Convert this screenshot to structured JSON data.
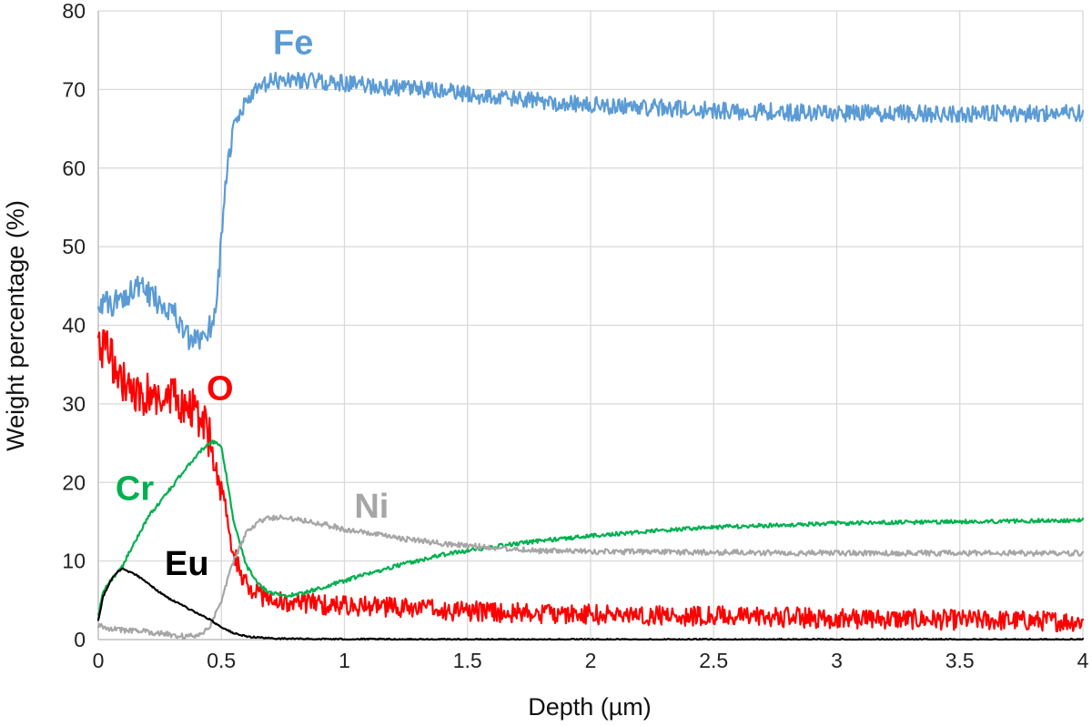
{
  "chart_data": {
    "type": "line",
    "title": "",
    "xlabel": "Depth (µm)",
    "ylabel": "Weight percentage (%)",
    "xlim": [
      0,
      4
    ],
    "ylim": [
      0,
      80
    ],
    "x_ticks": [
      0,
      0.5,
      1,
      1.5,
      2,
      2.5,
      3,
      3.5,
      4
    ],
    "y_ticks": [
      0,
      10,
      20,
      30,
      40,
      50,
      60,
      70,
      80
    ],
    "x_tick_labels": [
      "0",
      "0.5",
      "1",
      "1.5",
      "2",
      "2.5",
      "3",
      "3.5",
      "4"
    ],
    "y_tick_labels": [
      "0",
      "10",
      "20",
      "30",
      "40",
      "50",
      "60",
      "70",
      "80"
    ],
    "grid": true,
    "legend": "inline labels",
    "series": [
      {
        "name": "Fe",
        "color": "#5b9bd5",
        "label_at": [
          0.71,
          74.5
        ],
        "x": [
          0,
          0.05,
          0.1,
          0.15,
          0.2,
          0.25,
          0.3,
          0.35,
          0.38,
          0.4,
          0.43,
          0.46,
          0.48,
          0.5,
          0.52,
          0.55,
          0.6,
          0.65,
          0.7,
          0.8,
          0.9,
          1.0,
          1.2,
          1.4,
          1.6,
          1.8,
          2.0,
          2.2,
          2.5,
          3.0,
          3.5,
          4.0
        ],
        "y": [
          43,
          42.5,
          43.5,
          45,
          44,
          43,
          42,
          39,
          37.5,
          38,
          39,
          40,
          43,
          51,
          59,
          65,
          68.5,
          70,
          71,
          71.3,
          71,
          70.8,
          70.2,
          69.8,
          69,
          68.5,
          68,
          67.8,
          67.3,
          67,
          66.9,
          67
        ]
      },
      {
        "name": "O",
        "color": "#ff0000",
        "label_at": [
          0.44,
          30.5
        ],
        "x": [
          0,
          0.05,
          0.1,
          0.15,
          0.2,
          0.25,
          0.3,
          0.35,
          0.4,
          0.43,
          0.46,
          0.48,
          0.5,
          0.52,
          0.55,
          0.6,
          0.65,
          0.7,
          0.8,
          1.0,
          1.5,
          2.0,
          2.5,
          3.0,
          3.5,
          4.0
        ],
        "y": [
          38,
          36,
          33,
          31,
          31,
          30,
          30.5,
          30,
          29,
          27,
          25,
          23,
          20,
          16,
          11,
          7,
          5.8,
          5,
          4.6,
          4.4,
          3.6,
          3.2,
          3,
          2.7,
          2.5,
          2.3
        ]
      },
      {
        "name": "Cr",
        "color": "#00b050",
        "label_at": [
          0.07,
          17.8
        ],
        "x": [
          0,
          0.02,
          0.05,
          0.1,
          0.15,
          0.2,
          0.25,
          0.3,
          0.35,
          0.4,
          0.45,
          0.48,
          0.5,
          0.52,
          0.55,
          0.6,
          0.65,
          0.7,
          0.75,
          0.8,
          0.9,
          1.0,
          1.2,
          1.4,
          1.6,
          1.8,
          2.0,
          2.2,
          2.5,
          3.0,
          3.5,
          4.0
        ],
        "y": [
          3,
          6,
          7.5,
          9.5,
          12.5,
          15.5,
          17.5,
          19.5,
          21.5,
          23.5,
          25,
          25.2,
          24.5,
          21,
          15,
          9.5,
          7,
          6,
          5.6,
          5.7,
          6.5,
          7.5,
          9.3,
          10.8,
          11.8,
          12.6,
          13.2,
          13.7,
          14.3,
          14.8,
          15,
          15.2
        ]
      },
      {
        "name": "Ni",
        "color": "#a6a6a6",
        "label_at": [
          1.04,
          15.5
        ],
        "x": [
          0,
          0.05,
          0.1,
          0.15,
          0.2,
          0.25,
          0.3,
          0.35,
          0.4,
          0.45,
          0.5,
          0.55,
          0.6,
          0.65,
          0.7,
          0.75,
          0.8,
          0.9,
          1.0,
          1.2,
          1.4,
          1.6,
          1.8,
          2.0,
          2.5,
          3.0,
          3.5,
          4.0
        ],
        "y": [
          1.8,
          1.4,
          1.2,
          1.1,
          1.0,
          0.8,
          0.6,
          0.4,
          0.5,
          1.5,
          5,
          10,
          13.5,
          15,
          15.5,
          15.5,
          15.4,
          14.8,
          14,
          13,
          12.2,
          11.7,
          11.3,
          11.2,
          11.1,
          11,
          11,
          11
        ]
      },
      {
        "name": "Eu",
        "color": "#000000",
        "label_at": [
          0.27,
          8.2
        ],
        "x": [
          0,
          0.02,
          0.05,
          0.08,
          0.1,
          0.15,
          0.2,
          0.25,
          0.3,
          0.35,
          0.4,
          0.45,
          0.5,
          0.55,
          0.6,
          0.7,
          0.8,
          1.0,
          1.5,
          2.0,
          3.0,
          4.0
        ],
        "y": [
          2.5,
          5.5,
          7.5,
          8.7,
          9,
          8.3,
          7.2,
          6,
          5,
          4.2,
          3.4,
          2.6,
          1.6,
          0.8,
          0.4,
          0.15,
          0.1,
          0.05,
          0,
          0,
          0,
          0
        ]
      }
    ]
  }
}
